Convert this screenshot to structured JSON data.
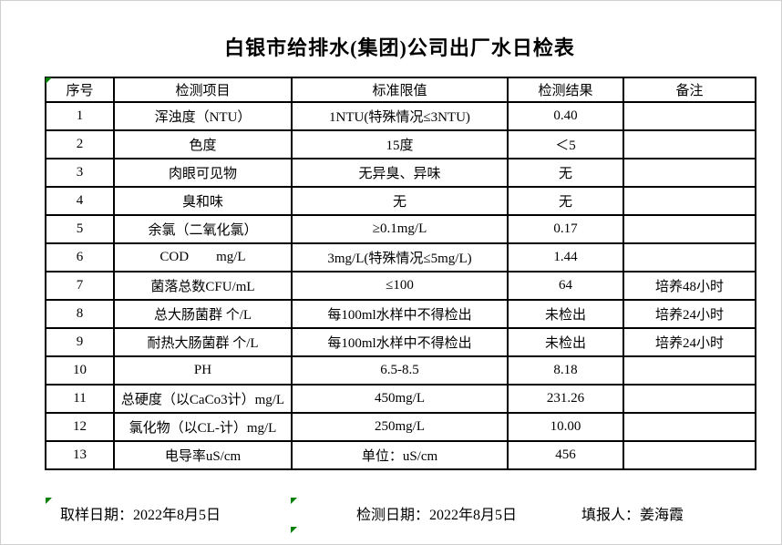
{
  "title": "白银市给排水(集团)公司出厂水日检表",
  "table": {
    "headers": [
      "序号",
      "检测项目",
      "标准限值",
      "检测结果",
      "备注"
    ],
    "rows": [
      {
        "no": "1",
        "item": "浑浊度（NTU）",
        "limit": "1NTU(特殊情况≤3NTU)",
        "result": "0.40",
        "note": ""
      },
      {
        "no": "2",
        "item": "色度",
        "limit": "15度",
        "result": "＜5",
        "note": ""
      },
      {
        "no": "3",
        "item": "肉眼可见物",
        "limit": "无异臭、异味",
        "result": "无",
        "note": ""
      },
      {
        "no": "4",
        "item": "臭和味",
        "limit": "无",
        "result": "无",
        "note": ""
      },
      {
        "no": "5",
        "item": "余氯（二氧化氯）",
        "limit": "≥0.1mg/L",
        "result": "0.17",
        "note": ""
      },
      {
        "no": "6",
        "item": "COD        mg/L",
        "limit": "3mg/L(特殊情况≤5mg/L)",
        "result": "1.44",
        "note": ""
      },
      {
        "no": "7",
        "item": "菌落总数CFU/mL",
        "limit": "≤100",
        "result": "64",
        "note": "培养48小时"
      },
      {
        "no": "8",
        "item": "总大肠菌群 个/L",
        "limit": "每100ml水样中不得检出",
        "result": "未检出",
        "note": "培养24小时"
      },
      {
        "no": "9",
        "item": "耐热大肠菌群 个/L",
        "limit": "每100ml水样中不得检出",
        "result": "未检出",
        "note": "培养24小时"
      },
      {
        "no": "10",
        "item": "PH",
        "limit": "6.5-8.5",
        "result": "8.18",
        "note": ""
      },
      {
        "no": "11",
        "item": "总硬度（以CaCo3计）mg/L",
        "limit": "450mg/L",
        "result": "231.26",
        "note": ""
      },
      {
        "no": "12",
        "item": "氯化物（以CL-计）mg/L",
        "limit": "250mg/L",
        "result": "10.00",
        "note": ""
      },
      {
        "no": "13",
        "item": "电导率uS/cm",
        "limit": "单位：uS/cm",
        "result": "456",
        "note": ""
      }
    ]
  },
  "footer": {
    "sampling_date": "取样日期：2022年8月5日",
    "test_date": "检测日期：2022年8月5日",
    "reporter": "填报人：姜海霞"
  },
  "colors": {
    "background": "#ffffff",
    "border": "#000000",
    "text": "#000000",
    "error_indicator_green": "#008000"
  }
}
